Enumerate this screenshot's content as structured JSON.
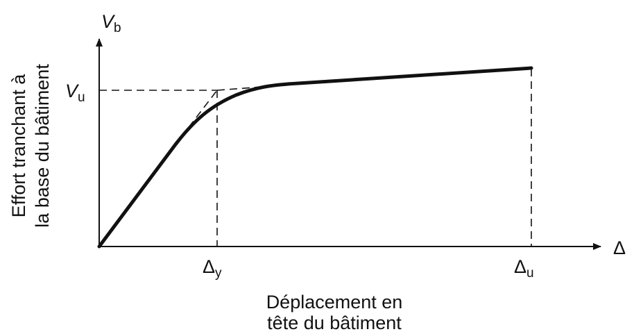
{
  "diagram": {
    "y_axis": {
      "symbol": "V",
      "subscript": "b",
      "label": [
        "Effort tranchant à",
        "la base du bâtiment"
      ]
    },
    "x_axis": {
      "symbol": "Δ",
      "label": [
        "Déplacement en",
        "tête du bâtiment"
      ]
    },
    "markers": {
      "v_u": {
        "symbol": "V",
        "subscript": "u"
      },
      "delta_y": {
        "symbol": "Δ",
        "subscript": "y"
      },
      "delta_u": {
        "symbol": "Δ",
        "subscript": "u"
      }
    }
  }
}
